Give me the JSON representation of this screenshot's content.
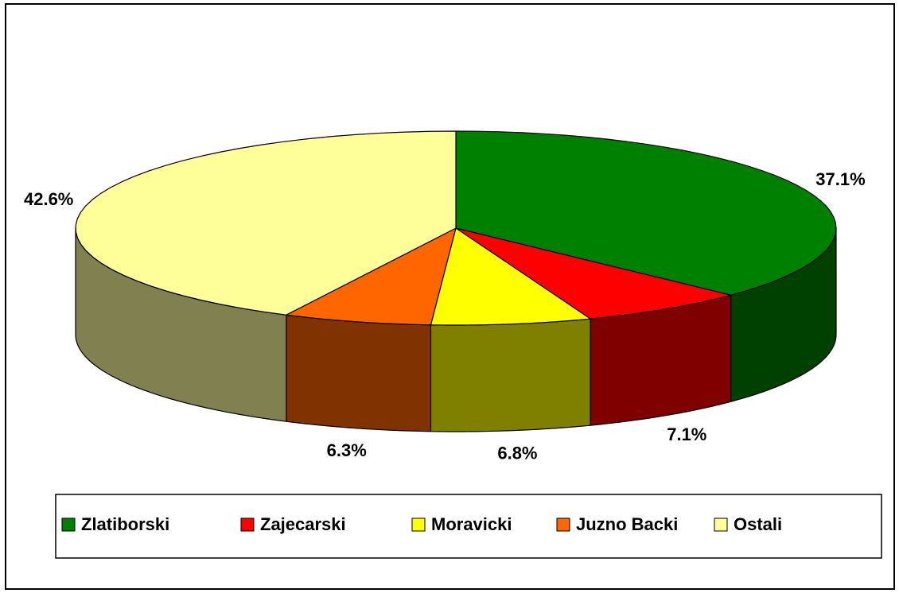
{
  "chart_data": {
    "type": "pie3d",
    "categories": [
      "Zlatiborski",
      "Zajecarski",
      "Moravicki",
      "Juzno Backi",
      "Ostali"
    ],
    "values": [
      37.1,
      7.1,
      6.8,
      6.3,
      42.6
    ],
    "value_labels": [
      "37.1%",
      "7.1%",
      "6.8%",
      "6.3%",
      "42.6%"
    ],
    "colors": [
      "#008000",
      "#ff0000",
      "#ffff00",
      "#ff6600",
      "#ffff99"
    ],
    "side_colors": [
      "#004000",
      "#800000",
      "#808000",
      "#803300",
      "#808050"
    ]
  }
}
